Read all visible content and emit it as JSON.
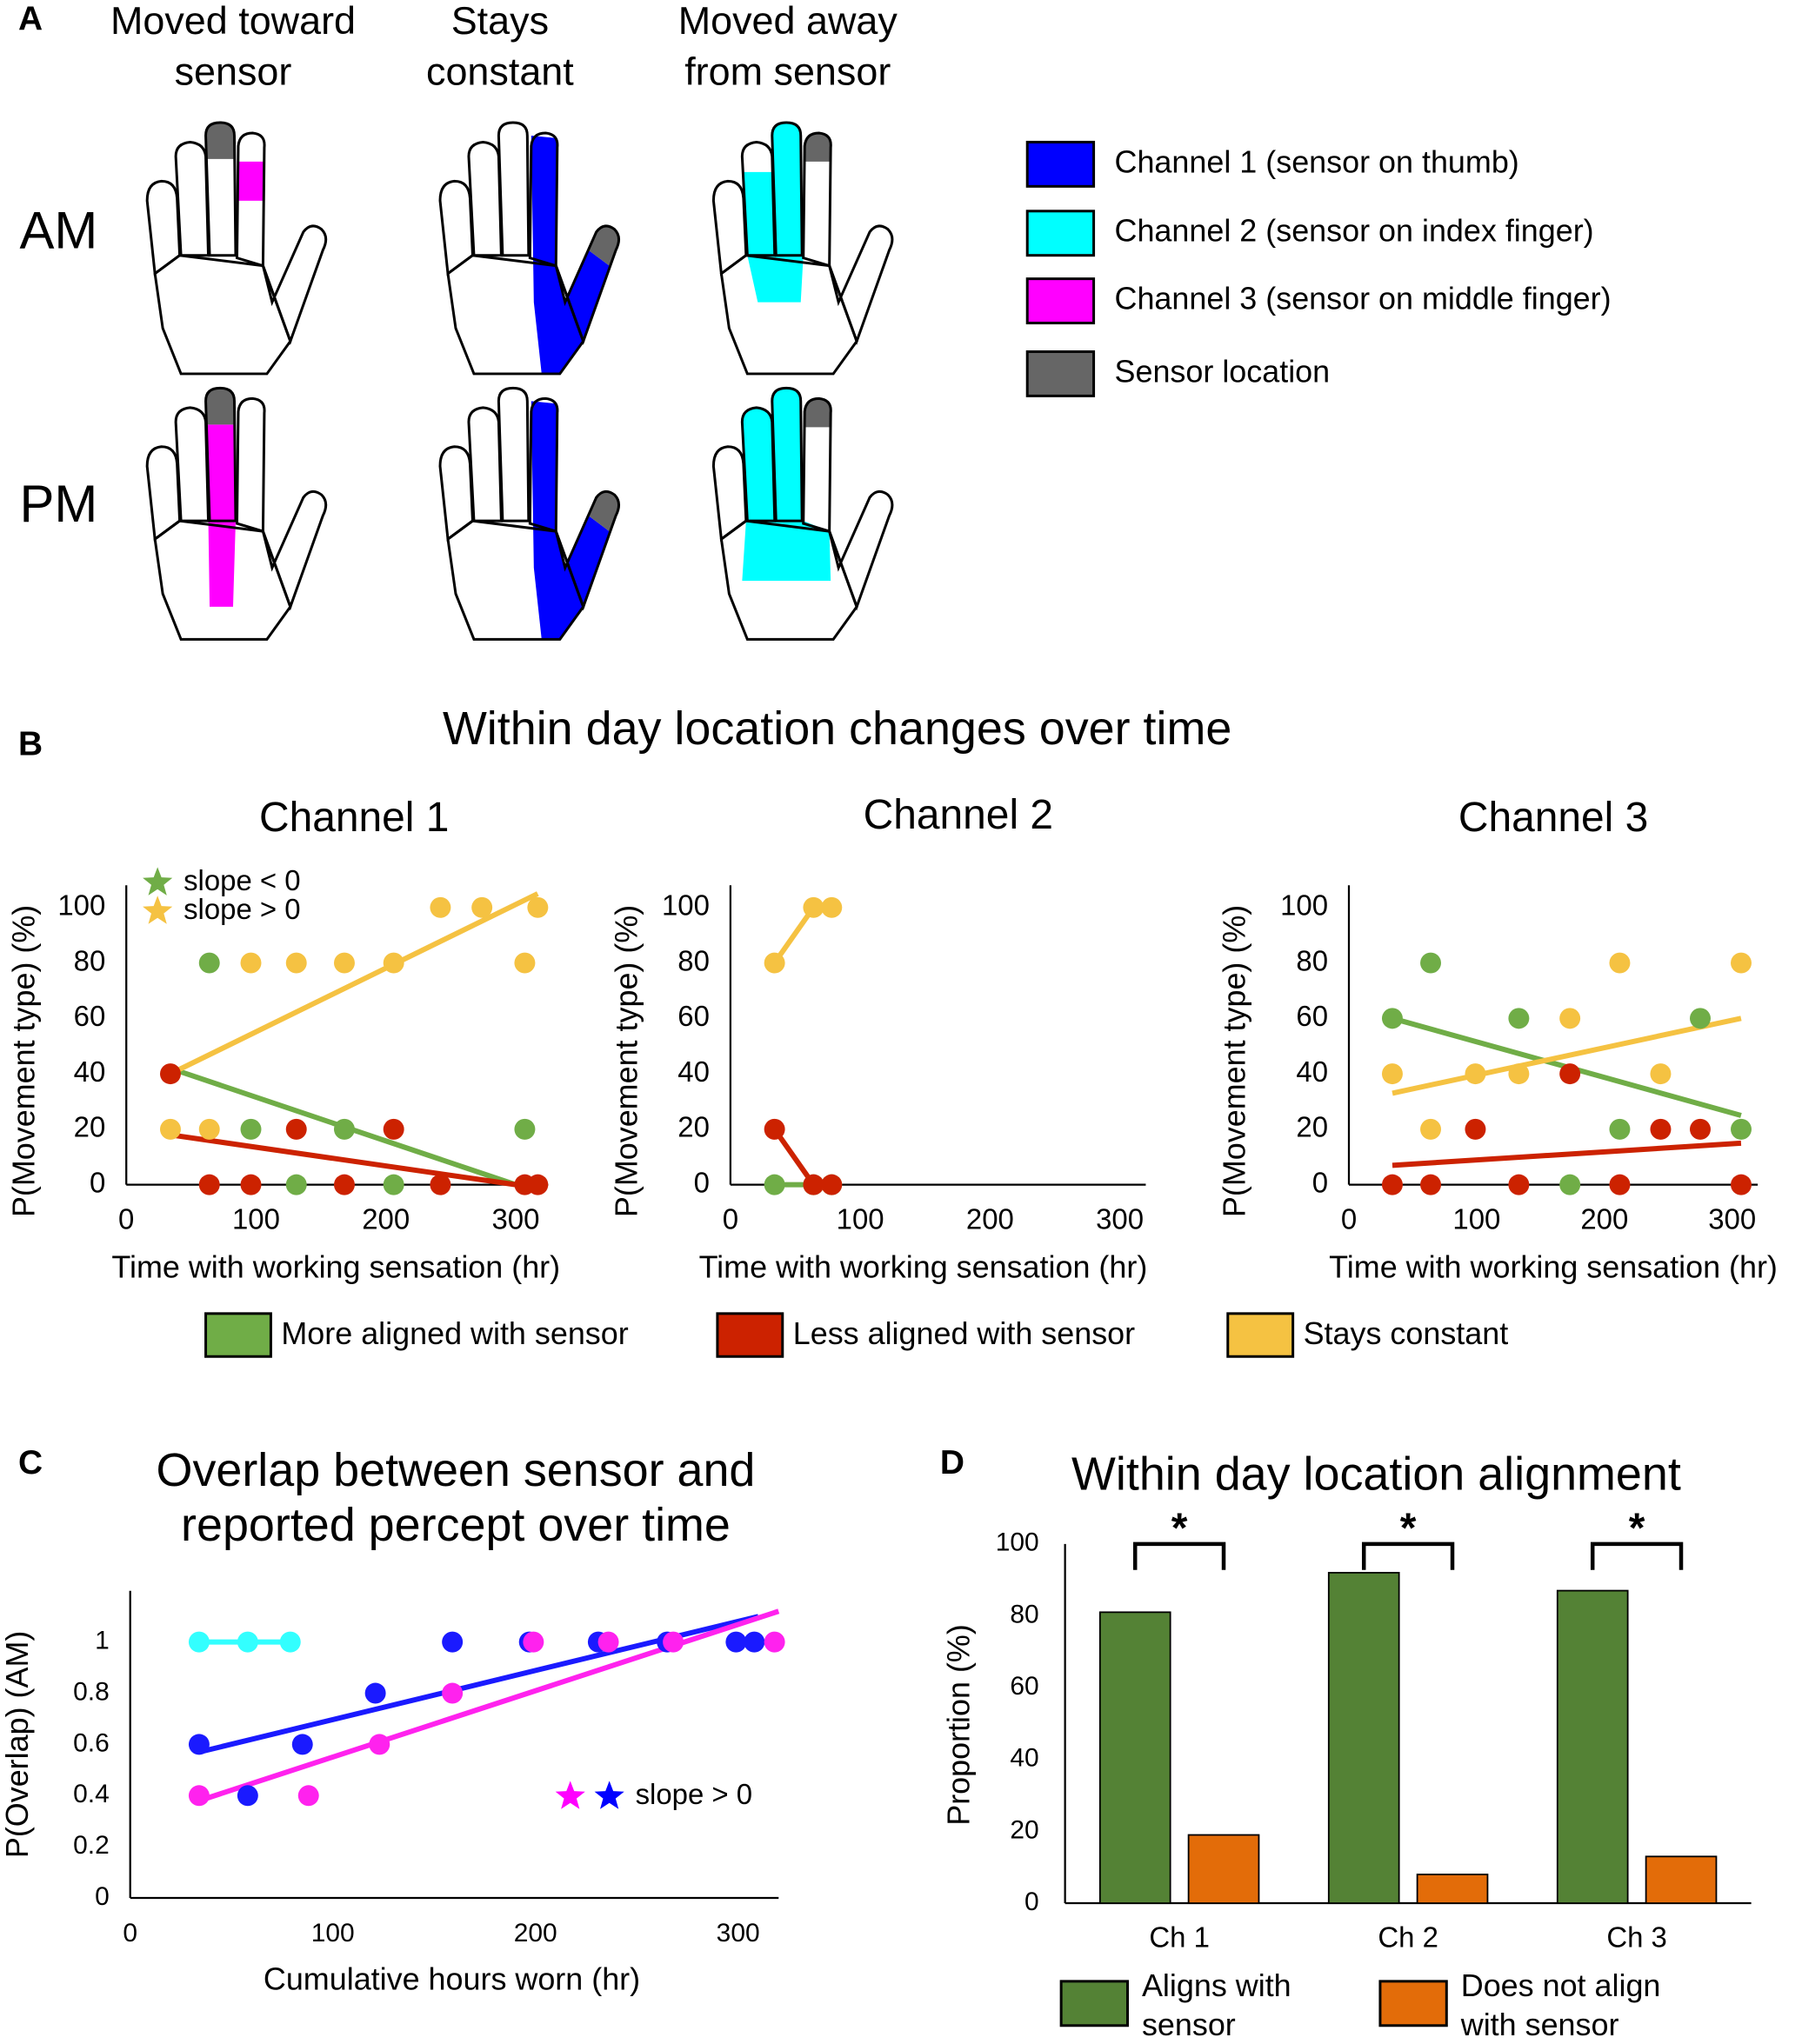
{
  "figure": {
    "panel_labels": [
      "A",
      "B",
      "C",
      "D"
    ],
    "panel_b_title": "Within day location changes over time"
  },
  "hand_diagram": {
    "columns": [
      [
        "Moved toward",
        "sensor"
      ],
      [
        "Stays",
        "constant"
      ],
      [
        "Moved away",
        "from sensor"
      ]
    ],
    "rows": [
      "AM",
      "PM"
    ],
    "legend": [
      {
        "label": "Channel 1 (sensor on thumb)",
        "color": "#0000ff"
      },
      {
        "label": "Channel 2 (sensor on index finger)",
        "color": "#00ffff"
      },
      {
        "label": "Channel 3 (sensor on middle finger)",
        "color": "#ff00ff"
      },
      {
        "label": "Sensor location",
        "color": "#666666"
      }
    ]
  },
  "chart_data": [
    {
      "type": "scatter",
      "title": "Channel 1",
      "xlabel": "Time with working sensation (hr)",
      "ylabel": "P(Movement type) (%)",
      "xlim": [
        0,
        325
      ],
      "ylim": [
        0,
        108
      ],
      "xticks": [
        0,
        100,
        200,
        300
      ],
      "yticks": [
        0,
        20,
        40,
        60,
        80,
        100
      ],
      "annotations": [
        {
          "text": "slope < 0",
          "colors": [
            "#70ad47"
          ]
        },
        {
          "text": "slope > 0",
          "colors": [
            "#f5c242"
          ]
        }
      ],
      "series": [
        {
          "name": "More aligned with sensor",
          "color": "#70ad47",
          "x": [
            64,
            96,
            131,
            168,
            206,
            307
          ],
          "values": [
            80,
            20,
            0,
            20,
            0,
            20
          ],
          "fit": {
            "x": [
              34,
              300
            ],
            "values": [
              42,
              0
            ]
          }
        },
        {
          "name": "Less aligned with sensor",
          "color": "#cc2200",
          "x": [
            34,
            64,
            96,
            131,
            168,
            206,
            242,
            307,
            317
          ],
          "values": [
            40,
            0,
            0,
            20,
            0,
            20,
            0,
            0,
            0
          ],
          "fit": {
            "x": [
              34,
              300
            ],
            "values": [
              18,
              0
            ]
          }
        },
        {
          "name": "Stays constant",
          "color": "#f5c242",
          "x": [
            34,
            64,
            96,
            131,
            168,
            206,
            242,
            274,
            307,
            317
          ],
          "values": [
            20,
            20,
            80,
            80,
            80,
            80,
            100,
            100,
            80,
            100
          ],
          "fit": {
            "x": [
              34,
              317
            ],
            "values": [
              40,
              105
            ]
          }
        }
      ]
    },
    {
      "type": "scatter",
      "title": "Channel 2",
      "xlabel": "Time with working sensation (hr)",
      "ylabel": "P(Movement type) (%)",
      "xlim": [
        0,
        320
      ],
      "ylim": [
        0,
        108
      ],
      "xticks": [
        0,
        100,
        200,
        300
      ],
      "yticks": [
        0,
        20,
        40,
        60,
        80,
        100
      ],
      "series": [
        {
          "name": "More aligned with sensor",
          "color": "#70ad47",
          "x": [
            34,
            64,
            78
          ],
          "values": [
            0,
            0,
            0
          ],
          "fit": {
            "x": [
              34,
              78
            ],
            "values": [
              0,
              0
            ]
          }
        },
        {
          "name": "Less aligned with sensor",
          "color": "#cc2200",
          "x": [
            34,
            64,
            78
          ],
          "values": [
            20,
            0,
            0
          ],
          "fit": {
            "x": [
              34,
              64,
              78
            ],
            "values": [
              20,
              0,
              0
            ]
          }
        },
        {
          "name": "Stays constant",
          "color": "#f5c242",
          "x": [
            34,
            64,
            78
          ],
          "values": [
            80,
            100,
            100
          ],
          "fit": {
            "x": [
              34,
              64,
              78
            ],
            "values": [
              80,
              100,
              100
            ]
          }
        }
      ]
    },
    {
      "type": "scatter",
      "title": "Channel 3",
      "xlabel": "Time with working sensation (hr)",
      "ylabel": "P(Movement type) (%)",
      "xlim": [
        0,
        320
      ],
      "ylim": [
        0,
        108
      ],
      "xticks": [
        0,
        100,
        200,
        300
      ],
      "yticks": [
        0,
        20,
        40,
        60,
        80,
        100
      ],
      "series": [
        {
          "name": "More aligned with sensor",
          "color": "#70ad47",
          "x": [
            34,
            64,
            133,
            173,
            212,
            275,
            307
          ],
          "values": [
            60,
            80,
            60,
            0,
            20,
            60,
            20
          ],
          "fit": {
            "x": [
              34,
              307
            ],
            "values": [
              60,
              25
            ]
          }
        },
        {
          "name": "Less aligned with sensor",
          "color": "#cc2200",
          "x": [
            34,
            64,
            99,
            133,
            173,
            212,
            244,
            275,
            307
          ],
          "values": [
            0,
            0,
            20,
            0,
            40,
            0,
            20,
            20,
            0
          ],
          "fit": {
            "x": [
              34,
              307
            ],
            "values": [
              7,
              15
            ]
          }
        },
        {
          "name": "Stays constant",
          "color": "#f5c242",
          "x": [
            34,
            64,
            99,
            133,
            173,
            212,
            244,
            307
          ],
          "values": [
            40,
            20,
            40,
            40,
            60,
            80,
            40,
            80
          ],
          "fit": {
            "x": [
              34,
              307
            ],
            "values": [
              33,
              60
            ]
          }
        }
      ]
    },
    {
      "type": "scatter",
      "title": [
        "Overlap between sensor and",
        "reported percept over time"
      ],
      "xlabel": "Cumulative hours worn (hr)",
      "ylabel": "P(Overlap) (AM)",
      "xlim": [
        0,
        320
      ],
      "ylim": [
        0,
        1.2
      ],
      "xticks": [
        0,
        100,
        200,
        300
      ],
      "yticks": [
        0,
        0.2,
        0.4,
        0.6,
        0.8,
        1
      ],
      "annotations": [
        {
          "text": "slope > 0",
          "colors": [
            "#ff00ff",
            "#0000ff"
          ]
        }
      ],
      "series": [
        {
          "color": "#33ffff",
          "x": [
            34,
            58,
            79
          ],
          "values": [
            1,
            1,
            1
          ],
          "fit": {
            "x": [
              34,
              79
            ],
            "values": [
              1,
              1
            ]
          }
        },
        {
          "color": "#1a1aff",
          "x": [
            34,
            58,
            85,
            121,
            159,
            197,
            231,
            265,
            299,
            308
          ],
          "values": [
            0.6,
            0.4,
            0.6,
            0.8,
            1,
            1,
            1,
            1,
            1,
            1
          ],
          "fit": {
            "x": [
              34,
              310
            ],
            "values": [
              0.57,
              1.1
            ]
          }
        },
        {
          "color": "#ff22ee",
          "x": [
            34,
            88,
            123,
            159,
            199,
            236,
            268,
            318
          ],
          "values": [
            0.4,
            0.4,
            0.6,
            0.8,
            1,
            1,
            1,
            1
          ],
          "fit": {
            "x": [
              34,
              320
            ],
            "values": [
              0.38,
              1.12
            ]
          }
        }
      ]
    },
    {
      "type": "bar",
      "title": "Within day location alignment",
      "ylabel": "Proportion (%)",
      "categories": [
        "Ch 1",
        "Ch 2",
        "Ch 3"
      ],
      "ylim": [
        0,
        100
      ],
      "yticks": [
        0,
        20,
        40,
        60,
        80,
        100
      ],
      "significance": [
        "*",
        "*",
        "*"
      ],
      "series": [
        {
          "name": [
            "Aligns with",
            "sensor"
          ],
          "color": "#548235",
          "values": [
            81,
            92,
            87
          ]
        },
        {
          "name": [
            "Does not align",
            "with sensor"
          ],
          "color": "#e36c09",
          "values": [
            19,
            8,
            13
          ]
        }
      ]
    }
  ]
}
